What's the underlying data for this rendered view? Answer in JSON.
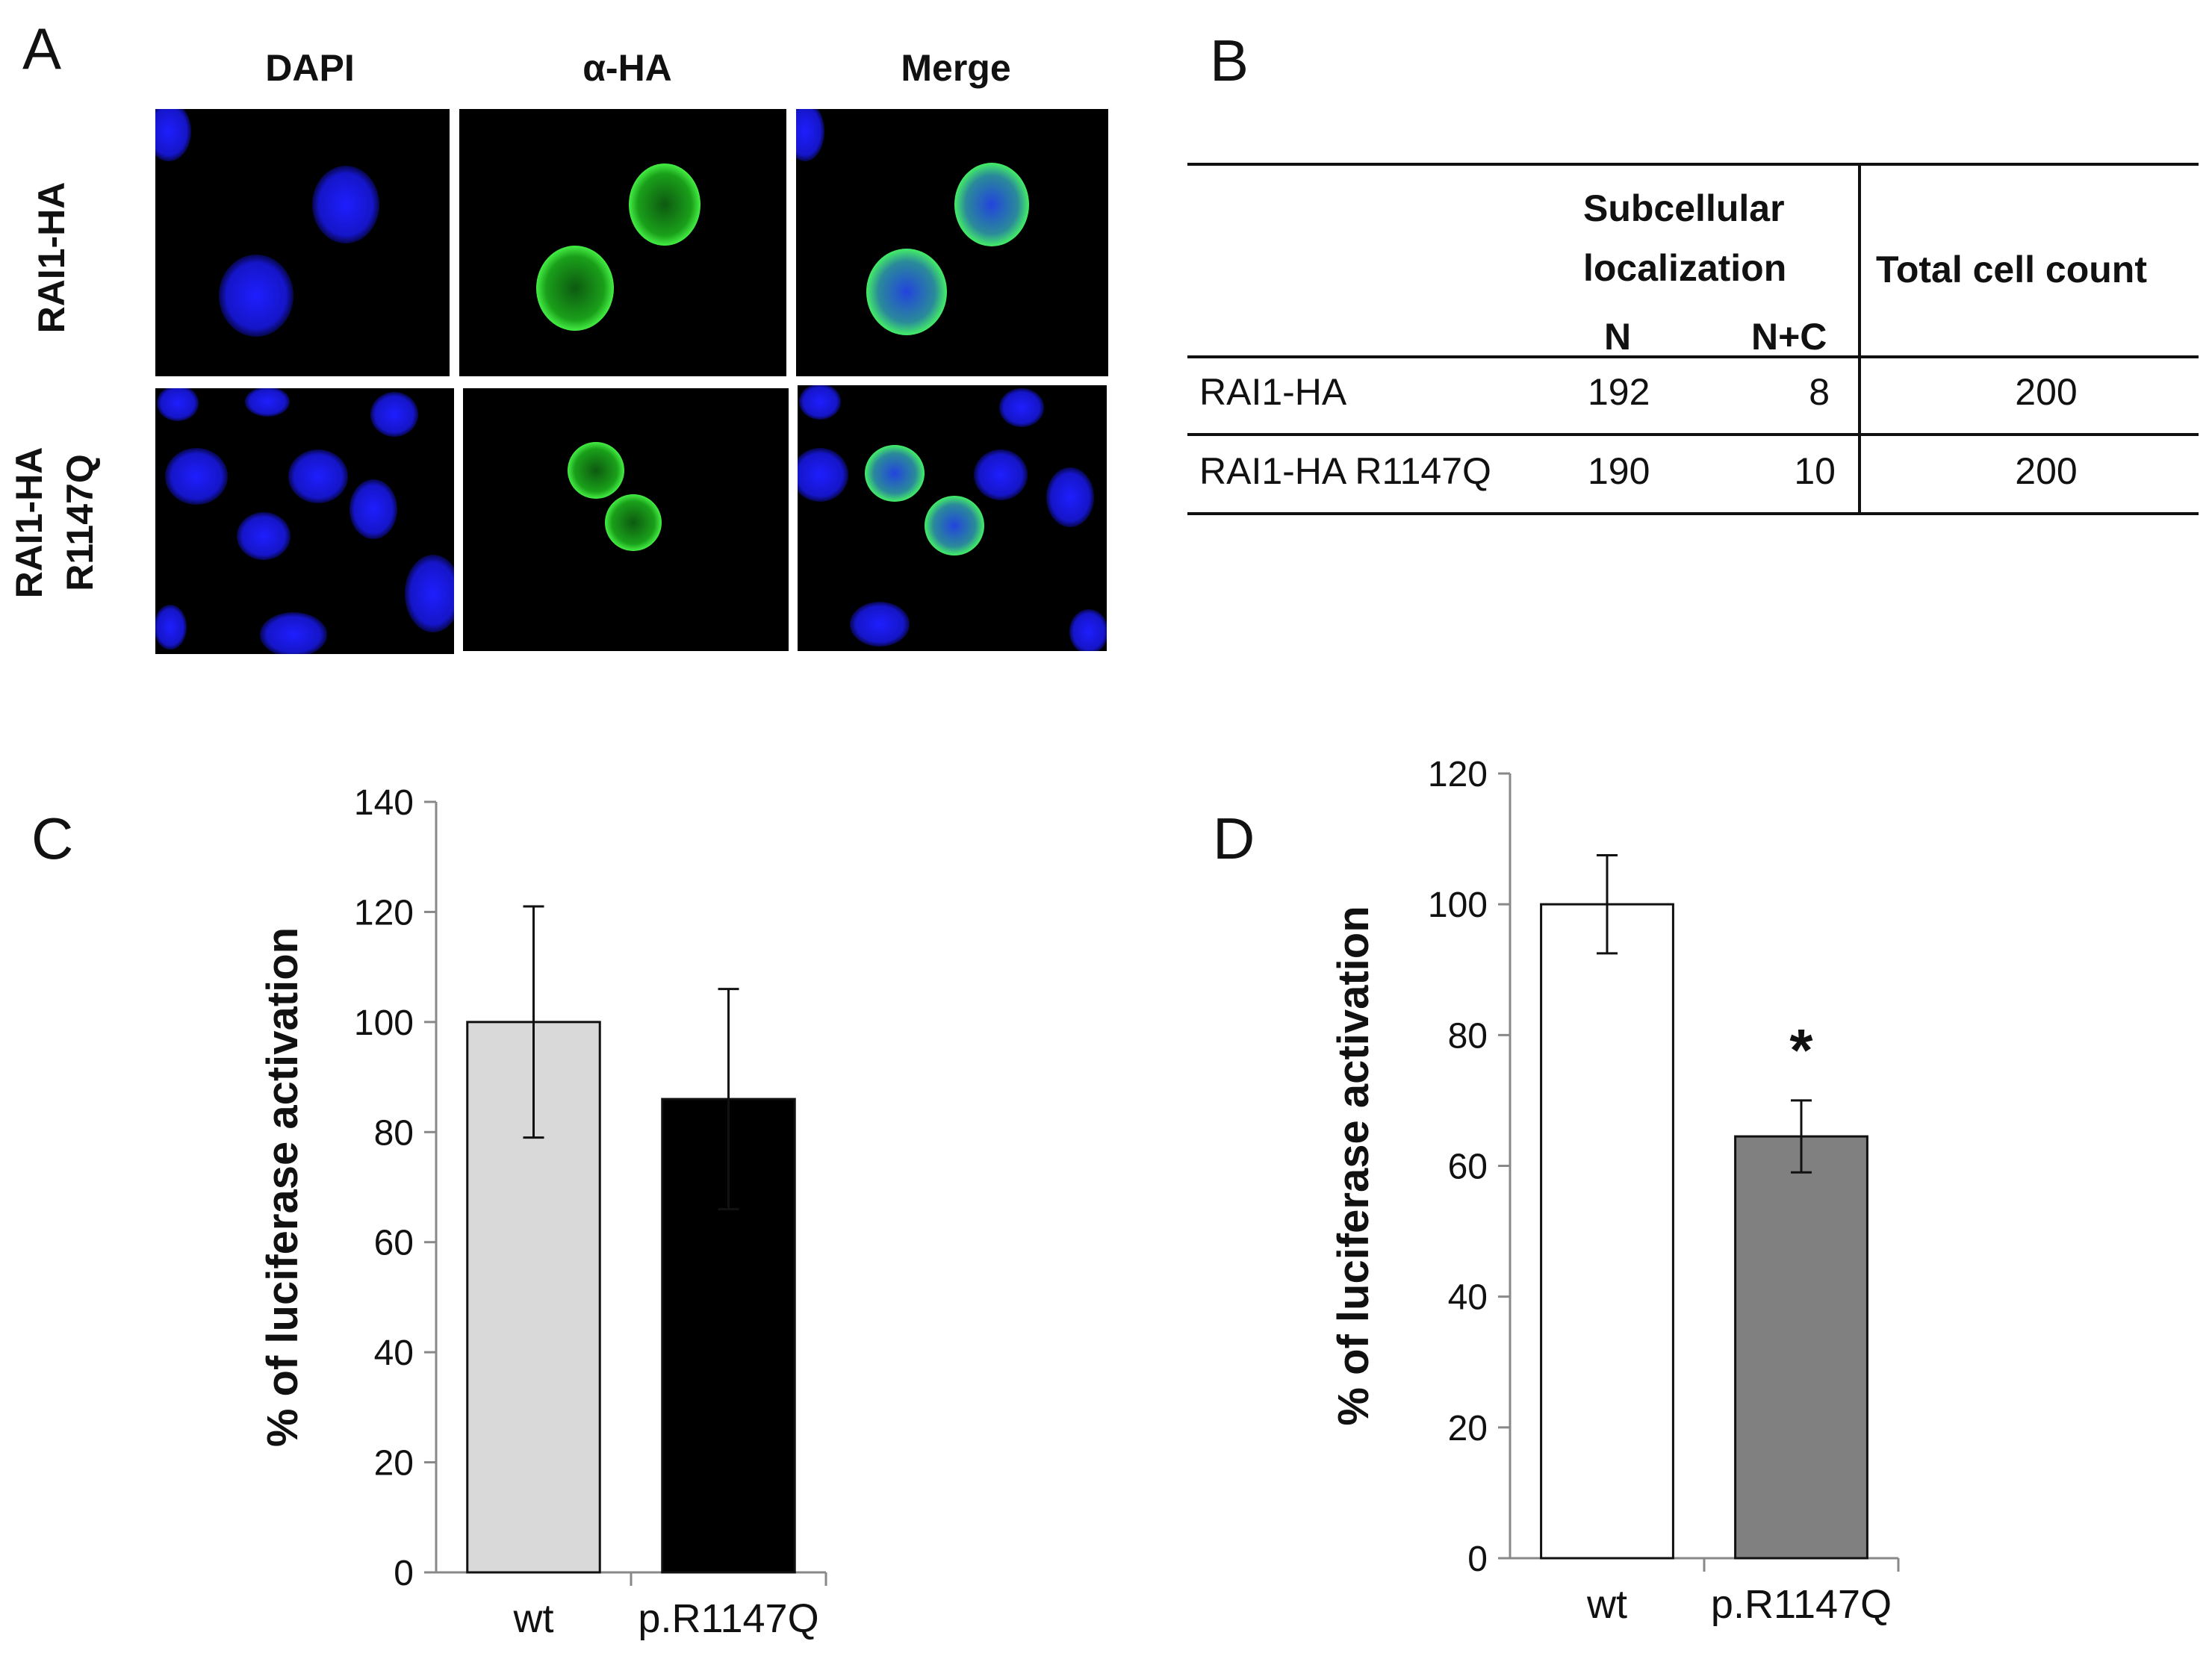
{
  "panel_a": {
    "letter": "A",
    "columns": [
      "DAPI",
      "α-HA",
      "Merge"
    ],
    "rows": [
      {
        "label": "RAI1-HA"
      },
      {
        "label": "RAI1-HA\nR1147Q"
      }
    ],
    "colors": {
      "dapi": "#1a1aff",
      "ha": "#22cc22",
      "merge": "#33bbaa",
      "background": "#000000"
    }
  },
  "panel_b": {
    "letter": "B",
    "header_group": "Subcellular localization",
    "header_group_line1": "Subcellular",
    "header_group_line2": "localization",
    "sub_n": "N",
    "sub_nc": "N+C",
    "header_total": "Total cell count",
    "rows": [
      {
        "name": "RAI1-HA",
        "n": "192",
        "nc": "8",
        "total": "200"
      },
      {
        "name": "RAI1-HA R1147Q",
        "n": "190",
        "nc": "10",
        "total": "200"
      }
    ]
  },
  "chart_data": [
    {
      "type": "bar",
      "panel": "C",
      "categories": [
        "wt",
        "p.R1147Q"
      ],
      "values": [
        100,
        86
      ],
      "errors": [
        21,
        20
      ],
      "bar_colors": [
        "#d9d9d9",
        "#000000"
      ],
      "ylabel": "% of luciferase activation",
      "ylim": [
        0,
        140
      ],
      "yticks": [
        "0",
        "20",
        "40",
        "60",
        "80",
        "100",
        "120",
        "140"
      ],
      "grid": false,
      "annotations": []
    },
    {
      "type": "bar",
      "panel": "D",
      "categories": [
        "wt",
        "p.R1147Q"
      ],
      "values": [
        100,
        64.5
      ],
      "errors": [
        7.5,
        5.5
      ],
      "bar_colors": [
        "#ffffff",
        "#808080"
      ],
      "ylabel": "% of luciferase activation",
      "ylim": [
        0,
        120
      ],
      "yticks": [
        "0",
        "20",
        "40",
        "60",
        "80",
        "100",
        "120"
      ],
      "grid": false,
      "annotations": [
        "*"
      ]
    }
  ]
}
